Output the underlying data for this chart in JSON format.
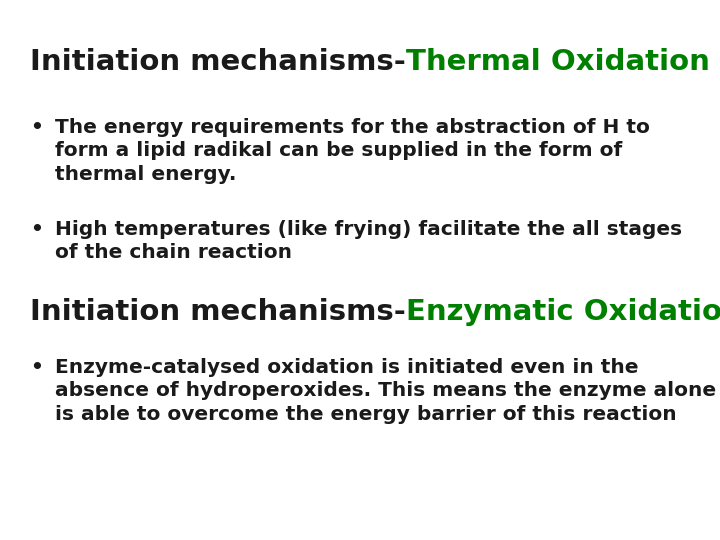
{
  "background_color": "#ffffff",
  "title1_black": "Initiation mechanisms-",
  "title1_green": "Thermal Oxidation",
  "title2_black": "Initiation mechanisms-",
  "title2_green": "Enzymatic Oxidation",
  "bullet1": "The energy requirements for the abstraction of H to\nform a lipid radikal can be supplied in the form of\nthermal energy.",
  "bullet2": "High temperatures (like frying) facilitate the all stages\nof the chain reaction",
  "bullet3": "Enzyme-catalysed oxidation is initiated even in the\nabsence of hydroperoxides. This means the enzyme alone\nis able to overcome the energy barrier of this reaction",
  "black_color": "#1a1a1a",
  "green_color": "#008000",
  "title_fontsize": 21,
  "body_fontsize": 14.5,
  "bullet_char": "•"
}
